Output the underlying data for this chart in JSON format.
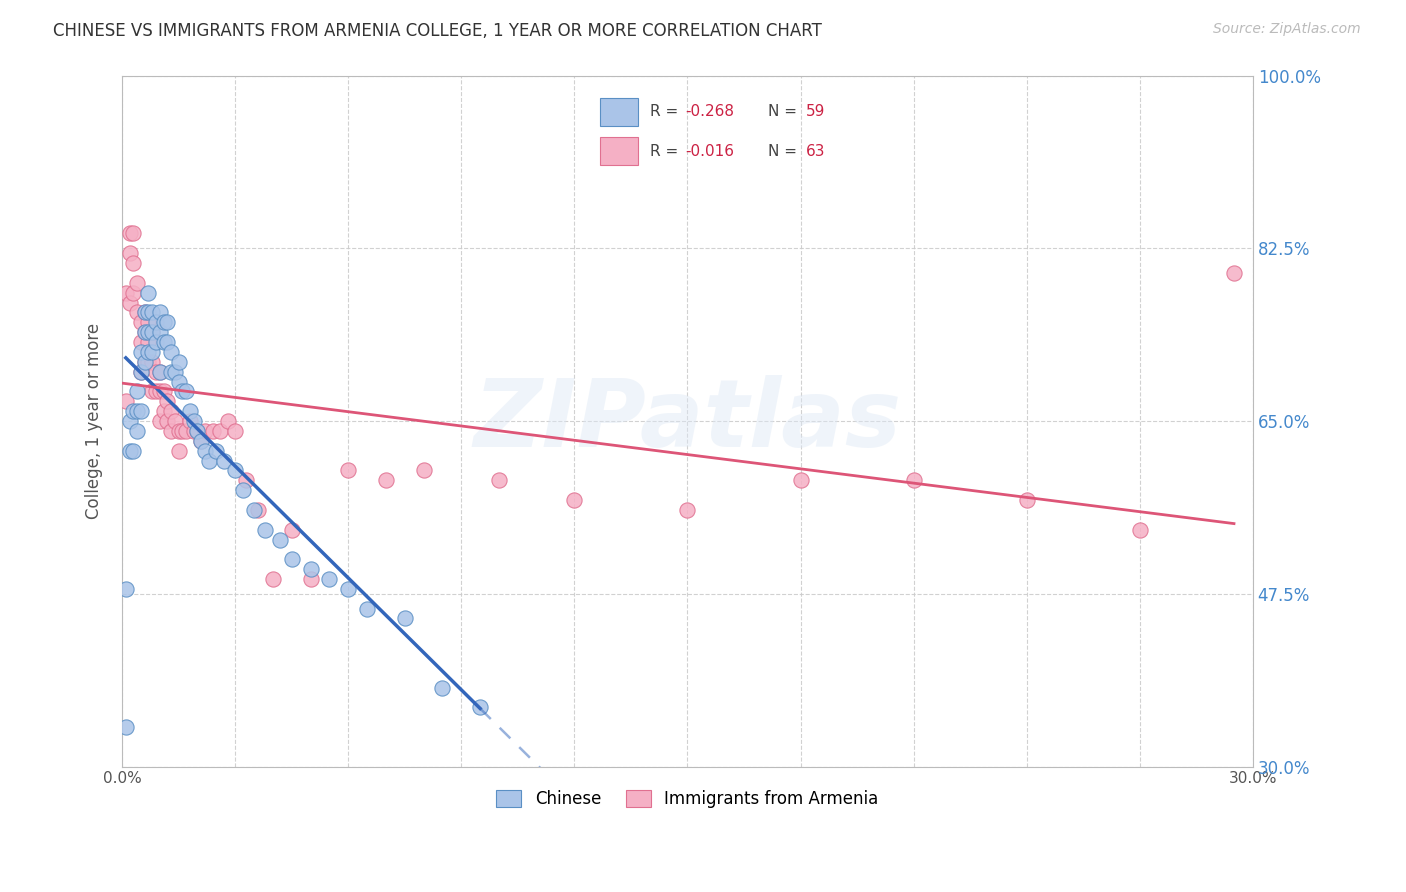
{
  "title": "CHINESE VS IMMIGRANTS FROM ARMENIA COLLEGE, 1 YEAR OR MORE CORRELATION CHART",
  "source": "Source: ZipAtlas.com",
  "ylabel": "College, 1 year or more",
  "xlim": [
    0.0,
    0.3
  ],
  "ylim": [
    0.3,
    1.0
  ],
  "xtick_positions": [
    0.0,
    0.03,
    0.06,
    0.09,
    0.12,
    0.15,
    0.18,
    0.21,
    0.24,
    0.27,
    0.3
  ],
  "xtick_labels": [
    "0.0%",
    "",
    "",
    "",
    "",
    "",
    "",
    "",
    "",
    "",
    "30.0%"
  ],
  "ytick_positions": [
    0.3,
    0.475,
    0.65,
    0.825,
    1.0
  ],
  "ytick_labels": [
    "30.0%",
    "47.5%",
    "65.0%",
    "82.5%",
    "100.0%"
  ],
  "r1": "-0.268",
  "n1": "59",
  "r2": "-0.016",
  "n2": "63",
  "series1_label": "Chinese",
  "series2_label": "Immigrants from Armenia",
  "series1_face": "#aac4e8",
  "series1_edge": "#5a8fc4",
  "series2_face": "#f5b0c5",
  "series2_edge": "#e07090",
  "trendline1_color": "#3366bb",
  "trendline2_color": "#dd5577",
  "watermark": "ZIPatlas",
  "chinese_x": [
    0.001,
    0.001,
    0.002,
    0.002,
    0.003,
    0.003,
    0.004,
    0.004,
    0.004,
    0.005,
    0.005,
    0.005,
    0.006,
    0.006,
    0.006,
    0.007,
    0.007,
    0.007,
    0.007,
    0.008,
    0.008,
    0.008,
    0.009,
    0.009,
    0.01,
    0.01,
    0.01,
    0.011,
    0.011,
    0.012,
    0.012,
    0.013,
    0.013,
    0.014,
    0.015,
    0.015,
    0.016,
    0.017,
    0.018,
    0.019,
    0.02,
    0.021,
    0.022,
    0.023,
    0.025,
    0.027,
    0.03,
    0.032,
    0.035,
    0.038,
    0.042,
    0.045,
    0.05,
    0.055,
    0.06,
    0.065,
    0.075,
    0.085,
    0.095
  ],
  "chinese_y": [
    0.34,
    0.48,
    0.65,
    0.62,
    0.66,
    0.62,
    0.68,
    0.66,
    0.64,
    0.72,
    0.7,
    0.66,
    0.76,
    0.74,
    0.71,
    0.78,
    0.76,
    0.74,
    0.72,
    0.76,
    0.74,
    0.72,
    0.75,
    0.73,
    0.76,
    0.74,
    0.7,
    0.75,
    0.73,
    0.75,
    0.73,
    0.72,
    0.7,
    0.7,
    0.71,
    0.69,
    0.68,
    0.68,
    0.66,
    0.65,
    0.64,
    0.63,
    0.62,
    0.61,
    0.62,
    0.61,
    0.6,
    0.58,
    0.56,
    0.54,
    0.53,
    0.51,
    0.5,
    0.49,
    0.48,
    0.46,
    0.45,
    0.38,
    0.36
  ],
  "armenia_x": [
    0.001,
    0.001,
    0.002,
    0.002,
    0.002,
    0.003,
    0.003,
    0.003,
    0.004,
    0.004,
    0.005,
    0.005,
    0.005,
    0.006,
    0.006,
    0.006,
    0.007,
    0.007,
    0.007,
    0.008,
    0.008,
    0.008,
    0.009,
    0.009,
    0.01,
    0.01,
    0.01,
    0.011,
    0.011,
    0.012,
    0.012,
    0.013,
    0.013,
    0.014,
    0.015,
    0.015,
    0.016,
    0.017,
    0.018,
    0.019,
    0.02,
    0.021,
    0.022,
    0.024,
    0.026,
    0.028,
    0.03,
    0.033,
    0.036,
    0.04,
    0.045,
    0.05,
    0.06,
    0.07,
    0.08,
    0.1,
    0.12,
    0.15,
    0.18,
    0.21,
    0.24,
    0.27,
    0.295
  ],
  "armenia_y": [
    0.78,
    0.67,
    0.84,
    0.82,
    0.77,
    0.84,
    0.81,
    0.78,
    0.79,
    0.76,
    0.75,
    0.73,
    0.7,
    0.76,
    0.74,
    0.71,
    0.75,
    0.73,
    0.71,
    0.74,
    0.71,
    0.68,
    0.7,
    0.68,
    0.7,
    0.68,
    0.65,
    0.68,
    0.66,
    0.67,
    0.65,
    0.66,
    0.64,
    0.65,
    0.64,
    0.62,
    0.64,
    0.64,
    0.65,
    0.64,
    0.64,
    0.63,
    0.64,
    0.64,
    0.64,
    0.65,
    0.64,
    0.59,
    0.56,
    0.49,
    0.54,
    0.49,
    0.6,
    0.59,
    0.6,
    0.59,
    0.57,
    0.56,
    0.59,
    0.59,
    0.57,
    0.54,
    0.8
  ]
}
